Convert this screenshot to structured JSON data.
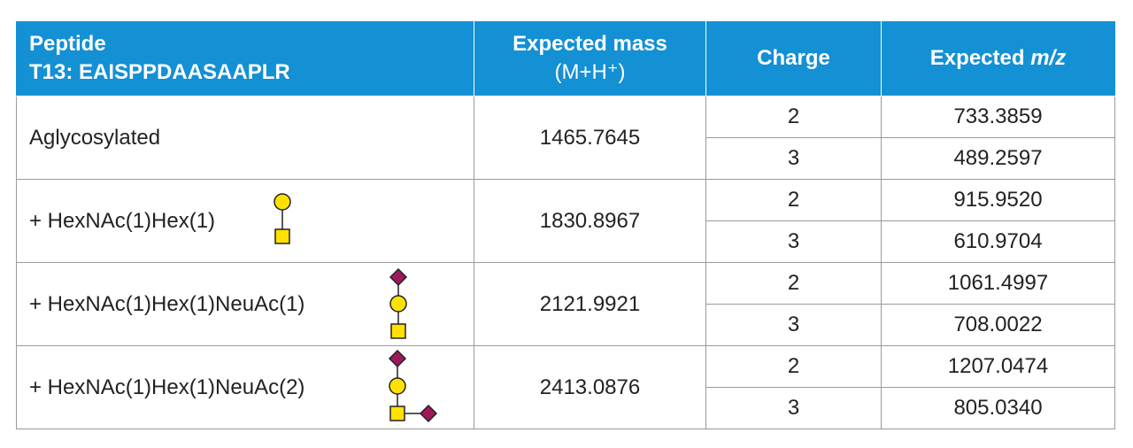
{
  "header": {
    "peptide": "Peptide",
    "sequence": "T13: EAISPPDAASAAPLR",
    "mass": "Expected mass",
    "mass_unit": "(M+H⁺)",
    "charge": "Charge",
    "mz_prefix": "Expected",
    "mz_italic": "m/z"
  },
  "rows": [
    {
      "label": "Aglycosylated",
      "mass": "1465.7645",
      "charges": [
        {
          "charge": "2",
          "mz": "733.3859"
        },
        {
          "charge": "3",
          "mz": "489.2597"
        }
      ]
    },
    {
      "label": "+ HexNAc(1)Hex(1)",
      "mass": "1830.8967",
      "charges": [
        {
          "charge": "2",
          "mz": "915.9520"
        },
        {
          "charge": "3",
          "mz": "610.9704"
        }
      ]
    },
    {
      "label": "+ HexNAc(1)Hex(1)NeuAc(1)",
      "mass": "2121.9921",
      "charges": [
        {
          "charge": "2",
          "mz": "1061.4997"
        },
        {
          "charge": "3",
          "mz": "708.0022"
        }
      ]
    },
    {
      "label": "+ HexNAc(1)Hex(1)NeuAc(2)",
      "mass": "2413.0876",
      "charges": [
        {
          "charge": "2",
          "mz": "1207.0474"
        },
        {
          "charge": "3",
          "mz": "805.0340"
        }
      ]
    }
  ]
}
